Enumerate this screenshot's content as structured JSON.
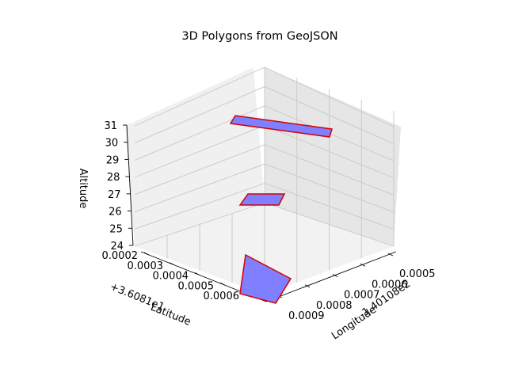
{
  "chart_data": {
    "type": "polygon3d",
    "title": "3D Polygons from GeoJSON",
    "xlabel": "Longitude",
    "ylabel": "Latitude",
    "zlabel": "Altitude",
    "x_offset_label": "-1.40108e2",
    "y_offset_label": "+3.6081e1",
    "xticks": [
      "0.0005",
      "0.0006",
      "0.0007",
      "0.0008",
      "0.0009"
    ],
    "yticks": [
      "0.0002",
      "0.0003",
      "0.0004",
      "0.0005",
      "0.0006"
    ],
    "zticks": [
      "24",
      "25",
      "26",
      "27",
      "28",
      "29",
      "30",
      "31"
    ],
    "polygons": [
      {
        "altitude": 31,
        "fill": "#7f7fff",
        "edge": "#d40000"
      },
      {
        "altitude": 27,
        "fill": "#7f7fff",
        "edge": "#d40000"
      },
      {
        "altitude": 24,
        "fill": "#7f7fff",
        "edge": "#d40000"
      }
    ],
    "grid": true
  }
}
